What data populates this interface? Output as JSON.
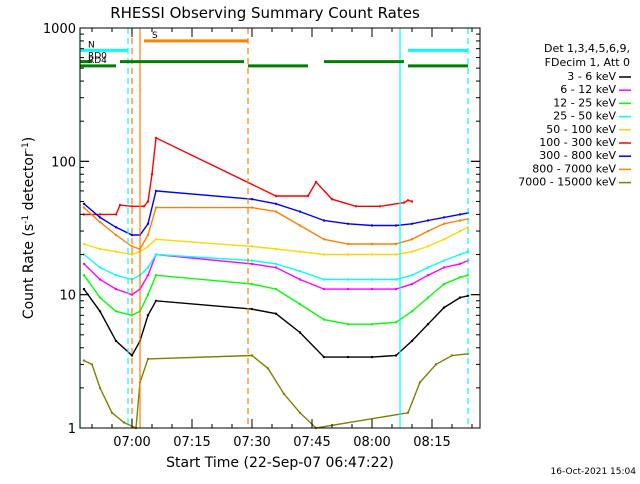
{
  "chart_data": {
    "type": "line",
    "title": "RHESSI Observing Summary Count Rates",
    "xlabel": "Start Time (22-Sep-07 06:47:22)",
    "ylabel": "Count Rate (s",
    "ylabel_sup": "-1",
    "ylabel_tail": " detector",
    "ylabel_sup2": "-1",
    "ylabel_end": ")",
    "yscale": "log",
    "ylim": [
      1,
      1000
    ],
    "y_tick_labels": [
      "1",
      "10",
      "100",
      "1000"
    ],
    "x_ticks": [
      "07:00",
      "07:15",
      "07:30",
      "07:45",
      "08:00",
      "08:15"
    ],
    "legend_header": [
      "Det 1,3,4,5,6,9,",
      "FDecim 1, Att 0"
    ],
    "series": [
      {
        "name": "3 - 6 keV",
        "color": "#000000",
        "x": [
          "06:48",
          "06:52",
          "06:56",
          "07:00",
          "07:02",
          "07:04",
          "07:06",
          "07:30",
          "07:36",
          "07:42",
          "07:48",
          "07:54",
          "08:00",
          "08:06",
          "08:10",
          "08:14",
          "08:18",
          "08:22",
          "08:24"
        ],
        "y": [
          11,
          7.5,
          4.5,
          3.5,
          4.5,
          7,
          9,
          7.8,
          7.2,
          5.2,
          3.4,
          3.4,
          3.4,
          3.5,
          4.5,
          6,
          8,
          9.5,
          9.8
        ]
      },
      {
        "name": "6 - 12 keV",
        "color": "#ff00ff",
        "x": [
          "06:48",
          "06:52",
          "06:56",
          "07:00",
          "07:02",
          "07:04",
          "07:06",
          "07:30",
          "07:36",
          "07:42",
          "07:48",
          "07:54",
          "08:00",
          "08:06",
          "08:10",
          "08:14",
          "08:18",
          "08:22",
          "08:24"
        ],
        "y": [
          17,
          13,
          11,
          10,
          11,
          14,
          20,
          17,
          16,
          13,
          11,
          11,
          11,
          11,
          12,
          14,
          16,
          17,
          18
        ]
      },
      {
        "name": "12 - 25 keV",
        "color": "#00ff00",
        "x": [
          "06:48",
          "06:52",
          "06:56",
          "07:00",
          "07:02",
          "07:04",
          "07:06",
          "07:30",
          "07:36",
          "07:42",
          "07:48",
          "07:54",
          "08:00",
          "08:06",
          "08:10",
          "08:14",
          "08:18",
          "08:22",
          "08:24"
        ],
        "y": [
          14,
          9.5,
          7.5,
          7,
          7.5,
          10,
          14,
          12,
          11,
          8.5,
          6.5,
          6,
          6,
          6.2,
          7.5,
          9.5,
          12,
          13.5,
          14
        ]
      },
      {
        "name": "25 - 50 keV",
        "color": "#00ffff",
        "x": [
          "06:48",
          "06:52",
          "06:56",
          "07:00",
          "07:02",
          "07:04",
          "07:06",
          "07:30",
          "07:36",
          "07:42",
          "07:48",
          "07:54",
          "08:00",
          "08:06",
          "08:10",
          "08:14",
          "08:18",
          "08:22",
          "08:24"
        ],
        "y": [
          20,
          16,
          14,
          13,
          14,
          16,
          20,
          18,
          17,
          15,
          13,
          13,
          13,
          13,
          14,
          16,
          18,
          20,
          21
        ]
      },
      {
        "name": "50 - 100 keV",
        "color": "#ffd700",
        "x": [
          "06:48",
          "06:52",
          "06:56",
          "07:00",
          "07:02",
          "07:04",
          "07:06",
          "07:30",
          "07:36",
          "07:42",
          "07:48",
          "07:54",
          "08:00",
          "08:06",
          "08:10",
          "08:14",
          "08:18",
          "08:22",
          "08:24"
        ],
        "y": [
          24,
          22,
          21,
          20,
          21,
          23,
          26,
          23,
          22,
          21,
          20,
          20,
          20,
          20,
          21,
          23,
          26,
          30,
          32
        ]
      },
      {
        "name": "100 - 300 keV",
        "color": "#ff0000",
        "x": [
          "06:48",
          "06:52",
          "06:56",
          "06:57",
          "07:00",
          "07:03",
          "07:04",
          "07:05",
          "07:06",
          "07:36",
          "07:44",
          "07:46",
          "07:50",
          "07:56",
          "08:02",
          "08:08",
          "08:09",
          "08:10"
        ],
        "y": [
          40,
          40,
          40,
          47,
          46,
          46,
          50,
          80,
          150,
          55,
          55,
          70,
          52,
          46,
          46,
          49,
          51,
          50
        ]
      },
      {
        "name": "300 - 800 keV",
        "color": "#0000ff",
        "x": [
          "06:48",
          "06:52",
          "06:56",
          "07:00",
          "07:02",
          "07:04",
          "07:06",
          "07:30",
          "07:36",
          "07:42",
          "07:48",
          "07:54",
          "08:00",
          "08:06",
          "08:10",
          "08:14",
          "08:18",
          "08:22",
          "08:24"
        ],
        "y": [
          48,
          38,
          32,
          28,
          28,
          34,
          60,
          52,
          48,
          42,
          36,
          34,
          33,
          33,
          34,
          36,
          38,
          40,
          41
        ]
      },
      {
        "name": "800 - 7000 keV",
        "color": "#ff8000",
        "x": [
          "06:48",
          "06:52",
          "06:56",
          "07:00",
          "07:02",
          "07:04",
          "07:06",
          "07:30",
          "07:36",
          "07:42",
          "07:48",
          "07:54",
          "08:00",
          "08:06",
          "08:10",
          "08:14",
          "08:18",
          "08:22",
          "08:24"
        ],
        "y": [
          45,
          35,
          28,
          23,
          22,
          28,
          45,
          45,
          42,
          33,
          26,
          24,
          24,
          24,
          26,
          30,
          34,
          36,
          37
        ]
      },
      {
        "name": "7000 - 15000 keV",
        "color": "#808000",
        "x": [
          "06:48",
          "06:50",
          "06:52",
          "06:55",
          "06:58",
          "07:01",
          "07:02",
          "07:04",
          "07:30",
          "07:34",
          "07:38",
          "07:42",
          "07:46",
          "08:09",
          "08:12",
          "08:16",
          "08:20",
          "08:24"
        ],
        "y": [
          3.2,
          3.0,
          2.0,
          1.3,
          1.1,
          1.0,
          2.2,
          3.3,
          3.5,
          2.8,
          1.8,
          1.3,
          1.0,
          1.3,
          2.2,
          3.0,
          3.5,
          3.6
        ]
      }
    ],
    "state_bars": [
      {
        "label": "S",
        "color": "#ff8000",
        "level": 800,
        "segments": [
          [
            "07:03",
            "07:29"
          ]
        ]
      },
      {
        "label": "N",
        "color": "#00ffff",
        "level": 680,
        "segments": [
          [
            "06:47",
            "06:59"
          ],
          [
            "08:09",
            "08:24"
          ]
        ]
      },
      {
        "label": "RD0",
        "color": "#008000",
        "level": 560,
        "segments": [
          [
            "06:47",
            "06:50"
          ],
          [
            "06:57",
            "07:28"
          ],
          [
            "07:48",
            "08:08"
          ]
        ]
      },
      {
        "label": "RD4",
        "color": "#008000",
        "level": 520,
        "segments": [
          [
            "06:47",
            "06:56"
          ],
          [
            "07:29",
            "07:44"
          ],
          [
            "08:09",
            "08:24"
          ]
        ]
      }
    ],
    "vertical_markers": [
      {
        "x": "06:47",
        "color": "#00ffff",
        "style": "solid"
      },
      {
        "x": "06:59",
        "color": "#00ffff",
        "style": "dashed"
      },
      {
        "x": "07:00",
        "color": "#ff8000",
        "style": "dashed"
      },
      {
        "x": "07:02",
        "color": "#ff8000",
        "style": "solid"
      },
      {
        "x": "07:29",
        "color": "#ff8000",
        "style": "dashed"
      },
      {
        "x": "08:07",
        "color": "#00ffff",
        "style": "solid"
      },
      {
        "x": "08:24",
        "color": "#00ffff",
        "style": "dashed"
      }
    ],
    "grid": false,
    "legend": "right"
  },
  "timestamp": "16-Oct-2021 15:04"
}
